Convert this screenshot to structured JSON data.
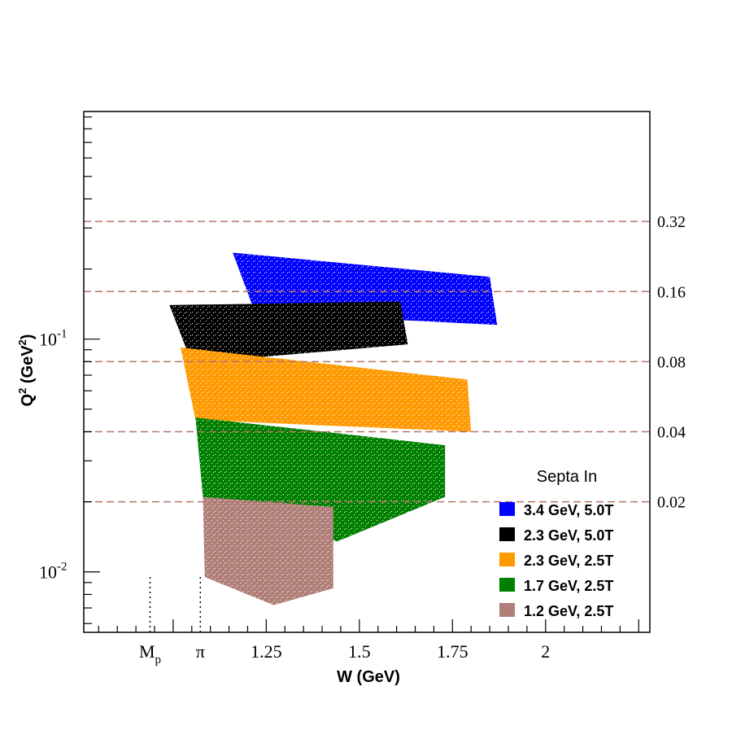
{
  "chart_data": {
    "type": "scatter",
    "title": "",
    "xlabel": "W (GeV)",
    "ylabel_main": "Q",
    "ylabel_sup": "2",
    "ylabel_unit_open": " (GeV",
    "ylabel_unit_sup": "2",
    "ylabel_unit_close": ")",
    "xscale": "linear",
    "yscale": "log",
    "xlim": [
      0.76,
      2.28
    ],
    "ylim": [
      0.0055,
      0.95
    ],
    "grid": false,
    "x_ticks": [
      {
        "value": 1.25,
        "label": "1.25"
      },
      {
        "value": 1.5,
        "label": "1.5"
      },
      {
        "value": 1.75,
        "label": "1.75"
      },
      {
        "value": 2.0,
        "label": "2"
      }
    ],
    "y_ticks": [
      {
        "value": 0.1,
        "base": "10",
        "exp": "-1"
      },
      {
        "value": 0.01,
        "base": "10",
        "exp": "-2"
      }
    ],
    "special_markers": [
      {
        "value": 0.938,
        "label_main": "M",
        "label_sub": "p"
      },
      {
        "value": 1.073,
        "label_main": "π",
        "label_sub": ""
      }
    ],
    "reference_lines": [
      {
        "value": 0.32,
        "label": "0.32"
      },
      {
        "value": 0.16,
        "label": "0.16"
      },
      {
        "value": 0.08,
        "label": "0.08"
      },
      {
        "value": 0.04,
        "label": "0.04"
      },
      {
        "value": 0.02,
        "label": "0.02"
      }
    ],
    "legend": {
      "title": "Septa In",
      "position": "bottom-right"
    },
    "series": [
      {
        "name": "3.4 GeV, 5.0T",
        "color": "#0000ff",
        "polygon": [
          [
            1.16,
            0.235
          ],
          [
            1.85,
            0.185
          ],
          [
            1.87,
            0.115
          ],
          [
            1.22,
            0.13
          ]
        ]
      },
      {
        "name": "2.3 GeV, 5.0T",
        "color": "#000000",
        "polygon": [
          [
            0.99,
            0.14
          ],
          [
            1.61,
            0.145
          ],
          [
            1.63,
            0.095
          ],
          [
            1.05,
            0.079
          ]
        ]
      },
      {
        "name": "2.3 GeV, 2.5T",
        "color": "#ff9900",
        "polygon": [
          [
            1.02,
            0.092
          ],
          [
            1.79,
            0.067
          ],
          [
            1.8,
            0.04
          ],
          [
            1.06,
            0.045
          ]
        ]
      },
      {
        "name": "1.7 GeV, 2.5T",
        "color": "#008000",
        "polygon": [
          [
            1.06,
            0.046
          ],
          [
            1.73,
            0.035
          ],
          [
            1.73,
            0.021
          ],
          [
            1.44,
            0.0135
          ],
          [
            1.08,
            0.021
          ]
        ]
      },
      {
        "name": "1.2 GeV, 2.5T",
        "color": "#b07f78",
        "polygon": [
          [
            1.08,
            0.021
          ],
          [
            1.43,
            0.019
          ],
          [
            1.43,
            0.0085
          ],
          [
            1.27,
            0.0072
          ],
          [
            1.085,
            0.0095
          ]
        ]
      }
    ]
  }
}
